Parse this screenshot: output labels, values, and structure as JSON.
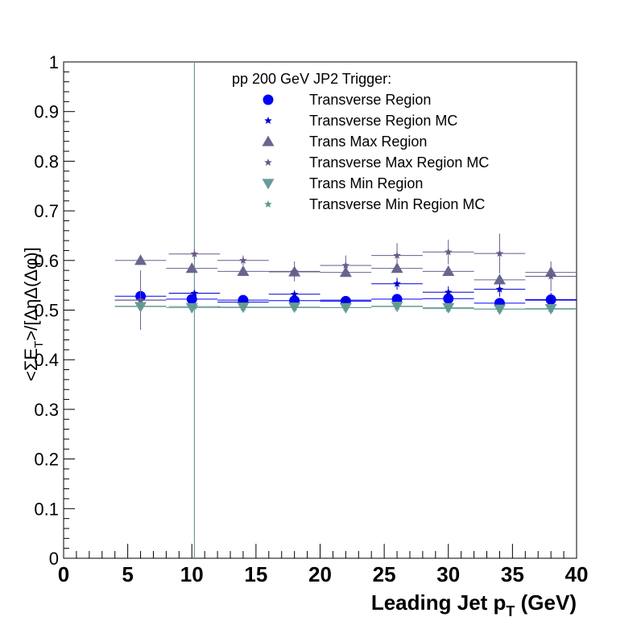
{
  "chart_data": {
    "type": "scatter",
    "xlabel_main": "Leading Jet p",
    "xlabel_sub": "T",
    "xlabel_unit": " (GeV)",
    "ylabel_main": "<ΣE",
    "ylabel_sub": "T",
    "ylabel_rest": ">/[ΔηΔ(Δφ)]",
    "xlim": [
      0,
      40
    ],
    "ylim": [
      0,
      1
    ],
    "x_ticks": [
      0,
      5,
      10,
      15,
      20,
      25,
      30,
      35,
      40
    ],
    "x_tick_labels": [
      "0",
      "5",
      "10",
      "15",
      "20",
      "25",
      "30",
      "35",
      "40"
    ],
    "y_ticks": [
      0,
      0.1,
      0.2,
      0.3,
      0.4,
      0.5,
      0.6,
      0.7,
      0.8,
      0.9,
      1
    ],
    "y_tick_labels": [
      "0",
      "0.1",
      "0.2",
      "0.3",
      "0.4",
      "0.5",
      "0.6",
      "0.7",
      "0.8",
      "0.9",
      "1"
    ],
    "legend_title": "pp 200 GeV JP2 Trigger:",
    "legend_position": "top-center",
    "grid": false,
    "vertical_line_x": 10.2,
    "series": [
      {
        "name": "Transverse Region",
        "marker": "circle",
        "color": "#0000ff",
        "x": [
          6,
          10,
          14,
          18,
          22,
          26,
          30,
          34,
          38
        ],
        "y": [
          0.528,
          0.522,
          0.52,
          0.519,
          0.518,
          0.522,
          0.523,
          0.514,
          0.521
        ],
        "xerr": [
          2,
          2,
          2,
          2,
          2,
          2,
          2,
          2,
          2
        ],
        "yerr": [
          0.004,
          0.003,
          0.003,
          0.003,
          0.003,
          0.004,
          0.005,
          0.006,
          0.007
        ]
      },
      {
        "name": "Transverse Region MC",
        "marker": "star",
        "color": "#0000cc",
        "x": [
          6,
          10.2,
          14,
          18,
          22,
          26,
          30,
          34,
          38
        ],
        "y": [
          0.52,
          0.534,
          0.516,
          0.532,
          0.52,
          0.553,
          0.536,
          0.542,
          0.52
        ],
        "xerr": [
          2,
          2,
          2,
          2,
          2,
          2,
          2,
          2,
          2
        ],
        "yerr": [
          0.006,
          0.006,
          0.006,
          0.008,
          0.008,
          0.012,
          0.012,
          0.015,
          0.015
        ]
      },
      {
        "name": "Trans Max Region",
        "marker": "triangle-up",
        "color": "#66668f",
        "x": [
          6,
          10,
          14,
          18,
          22,
          26,
          30,
          34,
          38
        ],
        "y": [
          0.6,
          0.584,
          0.578,
          0.577,
          0.576,
          0.584,
          0.578,
          0.561,
          0.576
        ],
        "xerr": [
          2,
          2,
          2,
          2,
          2,
          2,
          2,
          2,
          2
        ],
        "yerr": [
          0.005,
          0.004,
          0.004,
          0.004,
          0.004,
          0.005,
          0.006,
          0.008,
          0.01
        ]
      },
      {
        "name": "Transverse Max Region MC",
        "marker": "star",
        "color": "#6a5a8a",
        "x": [
          6,
          10.2,
          14,
          18,
          22,
          26,
          30,
          34,
          38
        ],
        "y": [
          0.52,
          0.613,
          0.6,
          0.578,
          0.59,
          0.61,
          0.617,
          0.614,
          0.568
        ],
        "xerr": [
          2,
          2,
          2,
          2,
          2,
          2,
          2,
          2,
          2
        ],
        "yerr": [
          0.06,
          0.01,
          0.01,
          0.02,
          0.02,
          0.025,
          0.025,
          0.04,
          0.03
        ]
      },
      {
        "name": "Trans Min Region",
        "marker": "triangle-down",
        "color": "#6a9a9a",
        "x": [
          6,
          10,
          14,
          18,
          22,
          26,
          30,
          34,
          38
        ],
        "y": [
          0.507,
          0.505,
          0.506,
          0.506,
          0.505,
          0.508,
          0.505,
          0.502,
          0.503
        ],
        "xerr": [
          2,
          2,
          2,
          2,
          2,
          2,
          2,
          2,
          2
        ],
        "yerr": [
          0.004,
          0.003,
          0.003,
          0.003,
          0.003,
          0.004,
          0.004,
          0.005,
          0.006
        ]
      },
      {
        "name": "Transverse Min Region MC",
        "marker": "star",
        "color": "#5f9a8e",
        "x": [
          6,
          10.2,
          14,
          18,
          22,
          26,
          30,
          34,
          38
        ],
        "y": [
          0.508,
          0.507,
          0.505,
          0.505,
          0.505,
          0.507,
          0.503,
          0.502,
          0.502
        ],
        "xerr": [
          2,
          2,
          2,
          2,
          2,
          2,
          2,
          2,
          2
        ],
        "yerr": [
          0.004,
          0.004,
          0.004,
          0.004,
          0.004,
          0.005,
          0.005,
          0.006,
          0.006
        ]
      }
    ]
  }
}
